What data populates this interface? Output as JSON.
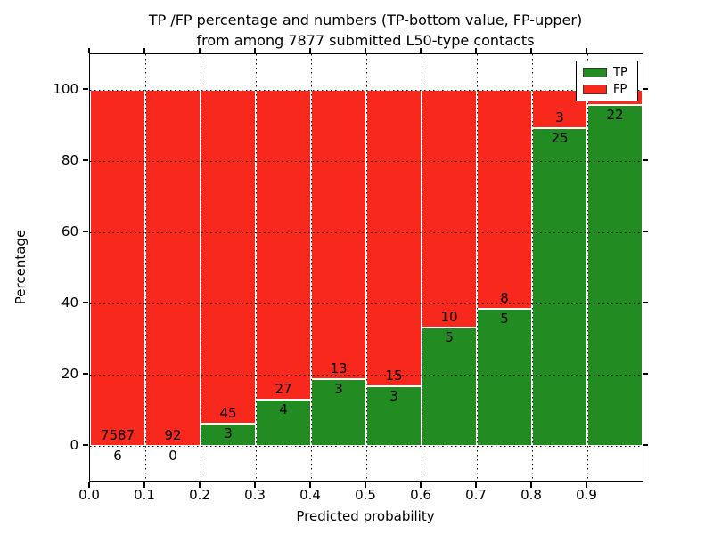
{
  "title": {
    "line1": "TP /FP percentage and numbers (TP-bottom value, FP-upper)",
    "line2": "from among 7877 submitted L50-type contacts"
  },
  "axes": {
    "xlabel": "Predicted probability",
    "ylabel": "Percentage",
    "x_tick_labels": [
      "0.0",
      "0.1",
      "0.2",
      "0.3",
      "0.4",
      "0.5",
      "0.6",
      "0.7",
      "0.8",
      "0.9"
    ],
    "y_tick_labels": [
      "0",
      "20",
      "40",
      "60",
      "80",
      "100"
    ],
    "y_tick_values": [
      0,
      20,
      40,
      60,
      80,
      100
    ]
  },
  "legend": {
    "entries": [
      {
        "label": "TP",
        "color": "#228b22"
      },
      {
        "label": "FP",
        "color": "#f8281d"
      }
    ]
  },
  "colors": {
    "tp": "#228b22",
    "fp": "#f8281d",
    "background": "#ffffff",
    "text": "#000000"
  },
  "chart_data": {
    "type": "bar",
    "stacked": true,
    "normalized_to": 100,
    "title": "TP /FP percentage and numbers (TP-bottom value, FP-upper) from among 7877 submitted L50-type contacts",
    "xlabel": "Predicted probability",
    "ylabel": "Percentage",
    "xlim": [
      0.0,
      1.0
    ],
    "ylim": [
      -10,
      110
    ],
    "grid": true,
    "legend_position": "upper right",
    "total_contacts": 7877,
    "bin_edges": [
      0.0,
      0.1,
      0.2,
      0.3,
      0.4,
      0.5,
      0.6,
      0.7,
      0.8,
      0.9,
      1.0
    ],
    "series": [
      {
        "name": "TP",
        "counts": [
          6,
          0,
          3,
          4,
          3,
          3,
          5,
          5,
          25,
          22
        ]
      },
      {
        "name": "FP",
        "counts": [
          7587,
          92,
          45,
          27,
          13,
          15,
          10,
          8,
          3,
          null
        ]
      }
    ],
    "bins": [
      {
        "range": "0.0-0.1",
        "tp": 6,
        "fp": 7587,
        "tp_pct": 0.08,
        "tp_label": "6",
        "fp_label": "7587"
      },
      {
        "range": "0.1-0.2",
        "tp": 0,
        "fp": 92,
        "tp_pct": 0.0,
        "tp_label": "0",
        "fp_label": "92"
      },
      {
        "range": "0.2-0.3",
        "tp": 3,
        "fp": 45,
        "tp_pct": 6.25,
        "tp_label": "3",
        "fp_label": "45"
      },
      {
        "range": "0.3-0.4",
        "tp": 4,
        "fp": 27,
        "tp_pct": 12.9,
        "tp_label": "4",
        "fp_label": "27"
      },
      {
        "range": "0.4-0.5",
        "tp": 3,
        "fp": 13,
        "tp_pct": 18.75,
        "tp_label": "3",
        "fp_label": "13"
      },
      {
        "range": "0.5-0.6",
        "tp": 3,
        "fp": 15,
        "tp_pct": 16.67,
        "tp_label": "3",
        "fp_label": "15"
      },
      {
        "range": "0.6-0.7",
        "tp": 5,
        "fp": 10,
        "tp_pct": 33.33,
        "tp_label": "5",
        "fp_label": "10"
      },
      {
        "range": "0.7-0.8",
        "tp": 5,
        "fp": 8,
        "tp_pct": 38.46,
        "tp_label": "5",
        "fp_label": "8"
      },
      {
        "range": "0.8-0.9",
        "tp": 25,
        "fp": 3,
        "tp_pct": 89.29,
        "tp_label": "25",
        "fp_label": "3"
      },
      {
        "range": "0.9-1.0",
        "tp": 22,
        "fp": null,
        "tp_pct": 95.65,
        "tp_label": "22",
        "fp_label": ""
      }
    ]
  }
}
